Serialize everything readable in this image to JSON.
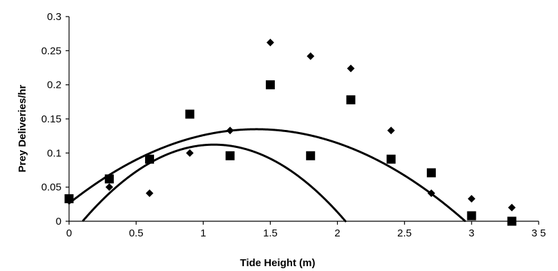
{
  "chart_data": {
    "type": "scatter",
    "title": "",
    "xlabel": "Tide Height (m)",
    "ylabel": "Prey Deliveries/hr",
    "xlim": [
      0,
      3.5
    ],
    "ylim": [
      0,
      0.3
    ],
    "grid": false,
    "legend": "none",
    "x_tick_labels": [
      "0",
      "0.5",
      "1",
      "1.5",
      "2",
      "2.5",
      "3",
      "3 5"
    ],
    "y_tick_labels": [
      "0",
      "0.05",
      "0.1",
      "0.15",
      "0.2",
      "0.25",
      "0.3"
    ],
    "x_ticks": [
      0,
      0.5,
      1,
      1.5,
      2,
      2.5,
      3,
      3.5
    ],
    "y_ticks": [
      0,
      0.05,
      0.1,
      0.15,
      0.2,
      0.25,
      0.3
    ],
    "series": [
      {
        "marker": "diamond",
        "color": "#000000",
        "x": [
          0.3,
          0.6,
          0.9,
          1.2,
          1.5,
          1.8,
          2.1,
          2.4,
          2.7,
          3.0,
          3.3
        ],
        "y": [
          0.05,
          0.041,
          0.1,
          0.133,
          0.262,
          0.242,
          0.224,
          0.133,
          0.041,
          0.033,
          0.02
        ],
        "trendline": {
          "type": "quadratic",
          "coefficients": [
            -0.0244,
            0.2529,
            -0.117
          ]
        }
      },
      {
        "marker": "square",
        "color": "#000000",
        "x": [
          0,
          0.3,
          0.6,
          0.9,
          1.2,
          1.5,
          1.8,
          2.1,
          2.4,
          2.7,
          3.0,
          3.3
        ],
        "y": [
          0.033,
          0.062,
          0.091,
          0.157,
          0.096,
          0.2,
          0.096,
          0.178,
          0.091,
          0.071,
          0.008,
          0.0
        ],
        "trendline": {
          "type": "quadratic",
          "coefficients": [
            0.0262,
            0.1556,
            -0.0557
          ]
        }
      }
    ]
  }
}
